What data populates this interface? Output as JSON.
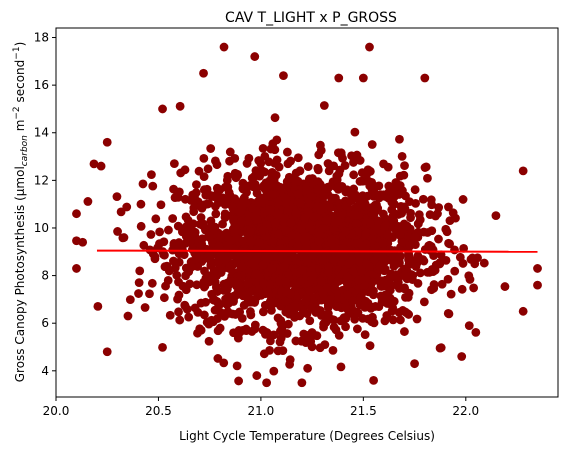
{
  "chart_data": {
    "type": "scatter",
    "title": "CAV T_LIGHT x P_GROSS",
    "xlabel": "Light Cycle Temperature (Degrees Celsius)",
    "ylabel": {
      "prefix": "Gross Canopy Photosynthesis (μmol",
      "subscript": "carbon",
      "middle": " m",
      "superscript1": "−2",
      "suffix": " second",
      "superscript2": "−1",
      "end": ")"
    },
    "xlim": [
      20.0,
      22.45
    ],
    "ylim": [
      2.9,
      18.4
    ],
    "xticks": [
      20.0,
      20.5,
      21.0,
      21.5,
      22.0
    ],
    "xtick_labels": [
      "20.0",
      "20.5",
      "21.0",
      "21.5",
      "22.0"
    ],
    "yticks": [
      4,
      6,
      8,
      10,
      12,
      14,
      16,
      18
    ],
    "ytick_labels": [
      "4",
      "6",
      "8",
      "10",
      "12",
      "14",
      "16",
      "18"
    ],
    "grid": false,
    "legend": "none",
    "colors": {
      "points": "#8b0000",
      "trend_line": "#ff0000",
      "axes": "#000000",
      "background": "#ffffff"
    },
    "cloud": {
      "center_x": 21.2,
      "center_y": 9.2,
      "x_range": [
        20.1,
        22.35
      ],
      "y_range": [
        3.5,
        17.6
      ]
    },
    "outliers": [
      {
        "x": 20.82,
        "y": 17.6
      },
      {
        "x": 20.97,
        "y": 17.2
      },
      {
        "x": 21.53,
        "y": 17.6
      },
      {
        "x": 20.72,
        "y": 16.5
      },
      {
        "x": 21.11,
        "y": 16.4
      },
      {
        "x": 21.38,
        "y": 16.3
      },
      {
        "x": 21.5,
        "y": 16.3
      },
      {
        "x": 21.8,
        "y": 16.3
      },
      {
        "x": 20.52,
        "y": 15.0
      },
      {
        "x": 20.25,
        "y": 13.6
      },
      {
        "x": 20.22,
        "y": 12.6
      },
      {
        "x": 22.28,
        "y": 12.4
      },
      {
        "x": 20.1,
        "y": 10.6
      },
      {
        "x": 20.1,
        "y": 8.3
      },
      {
        "x": 20.13,
        "y": 9.4
      },
      {
        "x": 22.35,
        "y": 8.3
      },
      {
        "x": 22.35,
        "y": 7.6
      },
      {
        "x": 22.28,
        "y": 6.5
      },
      {
        "x": 20.25,
        "y": 4.8
      },
      {
        "x": 21.2,
        "y": 3.5
      },
      {
        "x": 21.55,
        "y": 3.6
      },
      {
        "x": 20.98,
        "y": 3.8
      },
      {
        "x": 21.75,
        "y": 4.3
      },
      {
        "x": 21.98,
        "y": 4.6
      }
    ],
    "trend_line": {
      "x": [
        20.2,
        22.35
      ],
      "y": [
        9.05,
        9.0
      ]
    }
  }
}
